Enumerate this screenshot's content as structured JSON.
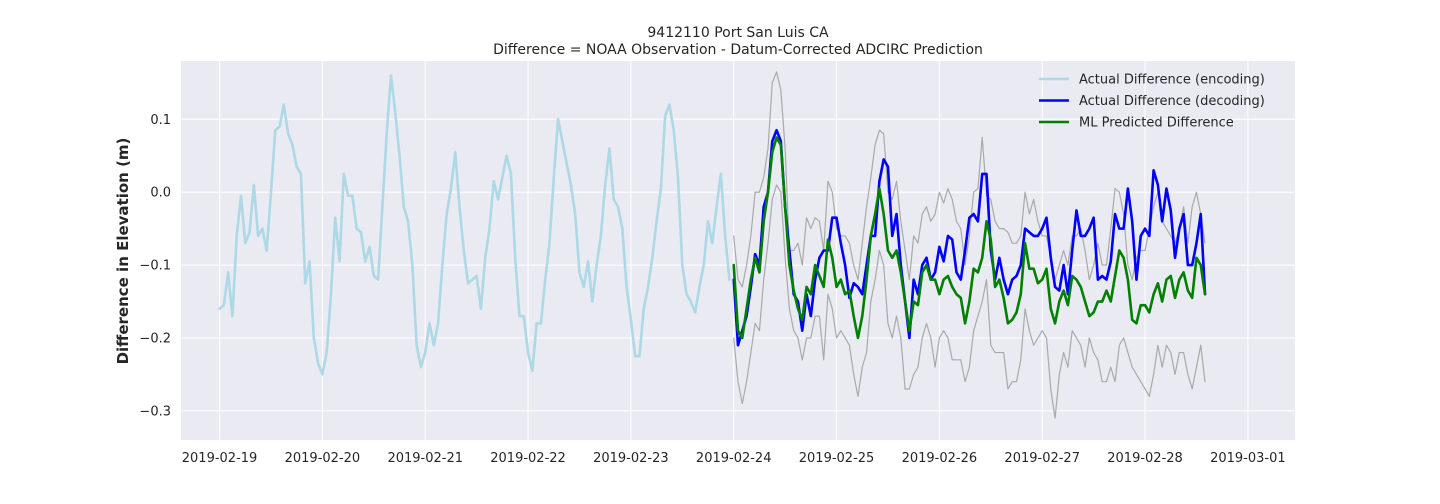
{
  "chart_data": {
    "type": "line",
    "title": "9412110 Port San Luis CA",
    "subtitle": "Difference = NOAA Observation - Datum-Corrected ADCIRC Prediction",
    "xlabel": "",
    "ylabel": "Difference in Elevation (m)",
    "xlim": [
      "2019-02-18T15:00",
      "2019-03-01T11:00"
    ],
    "ylim": [
      -0.34,
      0.18
    ],
    "x_ticks": [
      "2019-02-19",
      "2019-02-20",
      "2019-02-21",
      "2019-02-22",
      "2019-02-23",
      "2019-02-24",
      "2019-02-25",
      "2019-02-26",
      "2019-02-27",
      "2019-02-28",
      "2019-03-01"
    ],
    "y_ticks": [
      0.1,
      0.0,
      -0.1,
      -0.2,
      -0.3
    ],
    "y_tick_labels": [
      "0.1",
      "0.0",
      "−0.1",
      "−0.2",
      "−0.3"
    ],
    "grid": true,
    "legend_position": "top-right",
    "colors": {
      "background": "#eaeaf2",
      "grid": "#ffffff",
      "encoding": "#add8e6",
      "decoding": "#0000ff",
      "predicted": "#008000",
      "bounds": "#a9a9a9"
    },
    "series": [
      {
        "name": "Actual Difference (encoding)",
        "start": "2019-02-19T00:00",
        "step_hours": 1,
        "values": [
          -0.16,
          -0.155,
          -0.11,
          -0.17,
          -0.06,
          -0.005,
          -0.07,
          -0.055,
          0.01,
          -0.06,
          -0.05,
          -0.08,
          0.0,
          0.085,
          0.09,
          0.12,
          0.08,
          0.065,
          0.035,
          0.025,
          -0.125,
          -0.095,
          -0.2,
          -0.235,
          -0.25,
          -0.22,
          -0.14,
          -0.035,
          -0.095,
          0.025,
          -0.005,
          -0.005,
          -0.05,
          -0.055,
          -0.095,
          -0.075,
          -0.115,
          -0.12,
          -0.02,
          0.08,
          0.16,
          0.11,
          0.05,
          -0.02,
          -0.04,
          -0.1,
          -0.21,
          -0.24,
          -0.22,
          -0.18,
          -0.21,
          -0.18,
          -0.1,
          -0.03,
          0.005,
          0.055,
          -0.02,
          -0.08,
          -0.125,
          -0.12,
          -0.115,
          -0.16,
          -0.09,
          -0.05,
          0.015,
          -0.01,
          0.02,
          0.05,
          0.025,
          -0.09,
          -0.17,
          -0.17,
          -0.22,
          -0.245,
          -0.18,
          -0.18,
          -0.12,
          -0.07,
          0.02,
          0.1,
          0.07,
          0.04,
          0.01,
          -0.03,
          -0.11,
          -0.13,
          -0.095,
          -0.15,
          -0.1,
          -0.06,
          0.01,
          0.06,
          -0.01,
          -0.02,
          -0.05,
          -0.13,
          -0.175,
          -0.225,
          -0.225,
          -0.16,
          -0.13,
          -0.09,
          -0.04,
          0.005,
          0.105,
          0.12,
          0.085,
          0.02,
          -0.1,
          -0.14,
          -0.15,
          -0.165,
          -0.13,
          -0.1,
          -0.04,
          -0.07,
          -0.02,
          0.025,
          -0.06,
          -0.12
        ]
      },
      {
        "name": "Actual Difference (decoding)",
        "start": "2019-02-24T00:00",
        "step_hours": 1,
        "values": [
          -0.12,
          -0.21,
          -0.19,
          -0.17,
          -0.13,
          -0.085,
          -0.1,
          -0.02,
          0.0,
          0.07,
          0.085,
          0.07,
          -0.02,
          -0.08,
          -0.14,
          -0.15,
          -0.19,
          -0.14,
          -0.17,
          -0.12,
          -0.09,
          -0.08,
          -0.08,
          -0.035,
          -0.035,
          -0.07,
          -0.1,
          -0.145,
          -0.125,
          -0.13,
          -0.14,
          -0.1,
          -0.06,
          -0.06,
          0.015,
          0.045,
          0.035,
          -0.06,
          -0.03,
          -0.1,
          -0.15,
          -0.2,
          -0.12,
          -0.14,
          -0.1,
          -0.09,
          -0.12,
          -0.11,
          -0.075,
          -0.095,
          -0.06,
          -0.065,
          -0.11,
          -0.12,
          -0.08,
          -0.035,
          -0.03,
          -0.04,
          0.025,
          0.025,
          -0.08,
          -0.12,
          -0.09,
          -0.12,
          -0.14,
          -0.12,
          -0.115,
          -0.1,
          -0.05,
          -0.055,
          -0.06,
          -0.06,
          -0.05,
          -0.035,
          -0.09,
          -0.13,
          -0.135,
          -0.1,
          -0.14,
          -0.08,
          -0.025,
          -0.06,
          -0.06,
          -0.05,
          -0.035,
          -0.12,
          -0.115,
          -0.12,
          -0.095,
          -0.03,
          -0.05,
          -0.05,
          0.005,
          -0.04,
          -0.12,
          -0.06,
          -0.05,
          -0.06,
          0.03,
          0.01,
          -0.04,
          0.005,
          -0.025,
          -0.09,
          -0.05,
          -0.03,
          -0.1,
          -0.1,
          -0.07,
          -0.03,
          -0.14
        ]
      },
      {
        "name": "ML Predicted Difference",
        "start": "2019-02-24T00:00",
        "step_hours": 1,
        "values": [
          -0.1,
          -0.19,
          -0.2,
          -0.16,
          -0.12,
          -0.09,
          -0.11,
          -0.04,
          0.0,
          0.055,
          0.075,
          0.065,
          -0.02,
          -0.1,
          -0.135,
          -0.16,
          -0.175,
          -0.13,
          -0.14,
          -0.1,
          -0.115,
          -0.13,
          -0.065,
          -0.09,
          -0.13,
          -0.12,
          -0.14,
          -0.135,
          -0.17,
          -0.2,
          -0.17,
          -0.12,
          -0.06,
          -0.03,
          0.005,
          -0.03,
          -0.08,
          -0.09,
          -0.08,
          -0.11,
          -0.15,
          -0.19,
          -0.15,
          -0.155,
          -0.11,
          -0.1,
          -0.12,
          -0.12,
          -0.14,
          -0.12,
          -0.115,
          -0.13,
          -0.14,
          -0.145,
          -0.18,
          -0.15,
          -0.105,
          -0.11,
          -0.09,
          -0.04,
          -0.065,
          -0.13,
          -0.12,
          -0.145,
          -0.18,
          -0.175,
          -0.165,
          -0.14,
          -0.07,
          -0.105,
          -0.105,
          -0.125,
          -0.12,
          -0.105,
          -0.16,
          -0.18,
          -0.15,
          -0.135,
          -0.155,
          -0.115,
          -0.12,
          -0.13,
          -0.15,
          -0.17,
          -0.165,
          -0.15,
          -0.15,
          -0.135,
          -0.15,
          -0.115,
          -0.08,
          -0.09,
          -0.12,
          -0.175,
          -0.18,
          -0.155,
          -0.155,
          -0.165,
          -0.14,
          -0.125,
          -0.15,
          -0.12,
          -0.115,
          -0.145,
          -0.12,
          -0.11,
          -0.135,
          -0.145,
          -0.09,
          -0.1,
          -0.14
        ]
      },
      {
        "name": "",
        "start": "2019-02-24T00:00",
        "step_hours": 1,
        "values": [
          -0.06,
          -0.12,
          -0.13,
          -0.1,
          -0.06,
          0.0,
          0.0,
          0.02,
          0.06,
          0.15,
          0.165,
          0.14,
          0.06,
          -0.08,
          -0.08,
          -0.07,
          -0.1,
          -0.035,
          -0.05,
          -0.035,
          -0.04,
          -0.08,
          0.015,
          0.0,
          -0.05,
          -0.06,
          -0.06,
          -0.07,
          -0.1,
          -0.12,
          -0.07,
          -0.02,
          0.02,
          0.065,
          0.085,
          0.08,
          0.0,
          -0.01,
          0.015,
          -0.04,
          -0.08,
          -0.12,
          -0.06,
          -0.07,
          -0.03,
          -0.02,
          -0.04,
          -0.03,
          0.0,
          -0.015,
          0.005,
          -0.01,
          -0.04,
          -0.05,
          -0.1,
          -0.06,
          0.0,
          0.005,
          0.075,
          -0.005,
          -0.01,
          -0.04,
          -0.05,
          -0.05,
          -0.055,
          -0.07,
          -0.07,
          -0.06,
          0.0,
          -0.03,
          -0.01,
          -0.04,
          -0.06,
          -0.06,
          -0.09,
          -0.12,
          -0.1,
          -0.08,
          -0.1,
          -0.06,
          -0.06,
          -0.05,
          -0.08,
          -0.12,
          -0.1,
          -0.07,
          -0.1,
          -0.1,
          -0.05,
          0.005,
          0.0,
          -0.03,
          -0.1,
          -0.12,
          -0.09,
          -0.08,
          -0.08,
          -0.05,
          -0.02,
          0.0,
          -0.04,
          -0.05,
          -0.06,
          -0.07,
          -0.05,
          -0.02,
          -0.07,
          -0.02,
          0.0,
          -0.03,
          -0.07
        ]
      },
      {
        "name": "",
        "start": "2019-02-24T00:00",
        "step_hours": 1,
        "values": [
          -0.2,
          -0.26,
          -0.29,
          -0.26,
          -0.22,
          -0.18,
          -0.19,
          -0.12,
          -0.07,
          -0.01,
          0.01,
          0.0,
          -0.09,
          -0.16,
          -0.19,
          -0.2,
          -0.23,
          -0.2,
          -0.2,
          -0.17,
          -0.17,
          -0.23,
          -0.14,
          -0.16,
          -0.2,
          -0.19,
          -0.2,
          -0.21,
          -0.25,
          -0.28,
          -0.24,
          -0.22,
          -0.15,
          -0.12,
          -0.08,
          -0.1,
          -0.18,
          -0.2,
          -0.17,
          -0.2,
          -0.27,
          -0.27,
          -0.25,
          -0.24,
          -0.2,
          -0.18,
          -0.2,
          -0.24,
          -0.2,
          -0.19,
          -0.2,
          -0.23,
          -0.23,
          -0.23,
          -0.26,
          -0.24,
          -0.19,
          -0.17,
          -0.15,
          -0.12,
          -0.21,
          -0.22,
          -0.22,
          -0.22,
          -0.27,
          -0.26,
          -0.26,
          -0.23,
          -0.16,
          -0.19,
          -0.21,
          -0.2,
          -0.19,
          -0.2,
          -0.27,
          -0.31,
          -0.25,
          -0.22,
          -0.24,
          -0.19,
          -0.2,
          -0.21,
          -0.24,
          -0.2,
          -0.22,
          -0.23,
          -0.26,
          -0.26,
          -0.24,
          -0.26,
          -0.21,
          -0.2,
          -0.22,
          -0.24,
          -0.25,
          -0.26,
          -0.27,
          -0.28,
          -0.25,
          -0.21,
          -0.24,
          -0.21,
          -0.22,
          -0.25,
          -0.22,
          -0.22,
          -0.25,
          -0.27,
          -0.24,
          -0.21,
          -0.26
        ]
      }
    ]
  }
}
